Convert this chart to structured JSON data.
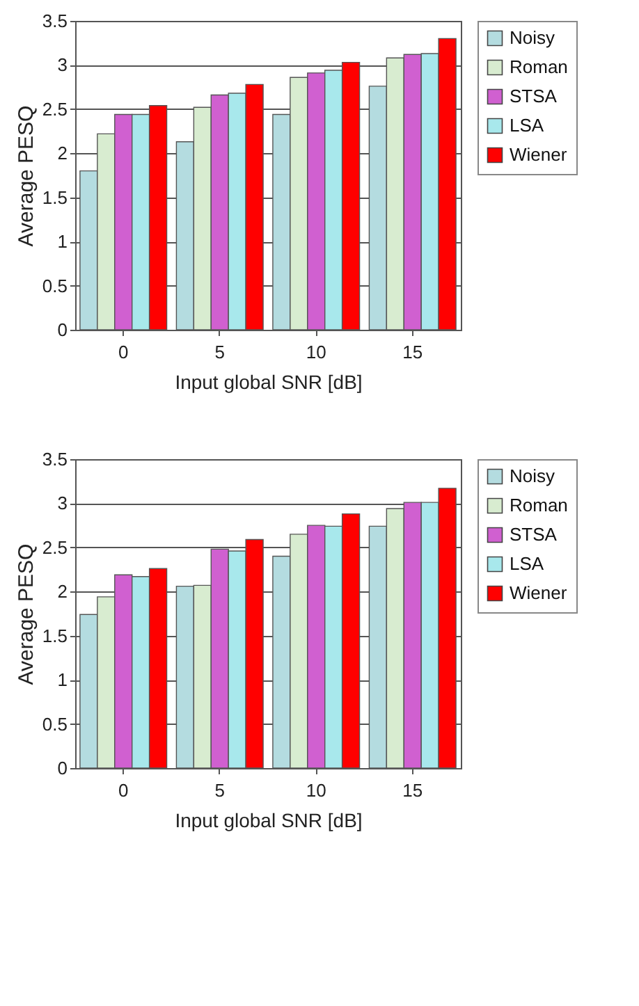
{
  "chart_data": [
    {
      "type": "bar",
      "xlabel": "Input global SNR [dB]",
      "ylabel": "Average PESQ",
      "categories": [
        "0",
        "5",
        "10",
        "15"
      ],
      "ylim": [
        0,
        3.5
      ],
      "yticks": [
        0,
        0.5,
        1,
        1.5,
        2,
        2.5,
        3,
        3.5
      ],
      "grid": "y",
      "legend": "right",
      "series": [
        {
          "name": "Noisy",
          "color": "#b4dce0",
          "values": [
            1.8,
            2.13,
            2.44,
            2.76
          ]
        },
        {
          "name": "Roman",
          "color": "#d8ecd0",
          "values": [
            2.22,
            2.52,
            2.86,
            3.08
          ]
        },
        {
          "name": "STSA",
          "color": "#d060d0",
          "values": [
            2.44,
            2.66,
            2.91,
            3.12
          ]
        },
        {
          "name": "LSA",
          "color": "#a8e8ec",
          "values": [
            2.44,
            2.68,
            2.94,
            3.13
          ]
        },
        {
          "name": "Wiener",
          "color": "#ff0000",
          "values": [
            2.54,
            2.78,
            3.03,
            3.3
          ]
        }
      ]
    },
    {
      "type": "bar",
      "xlabel": "Input global SNR [dB]",
      "ylabel": "Average PESQ",
      "categories": [
        "0",
        "5",
        "10",
        "15"
      ],
      "ylim": [
        0,
        3.5
      ],
      "yticks": [
        0,
        0.5,
        1,
        1.5,
        2,
        2.5,
        3,
        3.5
      ],
      "grid": "y",
      "legend": "right",
      "series": [
        {
          "name": "Noisy",
          "color": "#b4dce0",
          "values": [
            1.74,
            2.06,
            2.4,
            2.74
          ]
        },
        {
          "name": "Roman",
          "color": "#d8ecd0",
          "values": [
            1.94,
            2.07,
            2.65,
            2.94
          ]
        },
        {
          "name": "STSA",
          "color": "#d060d0",
          "values": [
            2.19,
            2.48,
            2.75,
            3.01
          ]
        },
        {
          "name": "LSA",
          "color": "#a8e8ec",
          "values": [
            2.17,
            2.46,
            2.74,
            3.01
          ]
        },
        {
          "name": "Wiener",
          "color": "#ff0000",
          "values": [
            2.26,
            2.59,
            2.88,
            3.17
          ]
        }
      ]
    }
  ]
}
